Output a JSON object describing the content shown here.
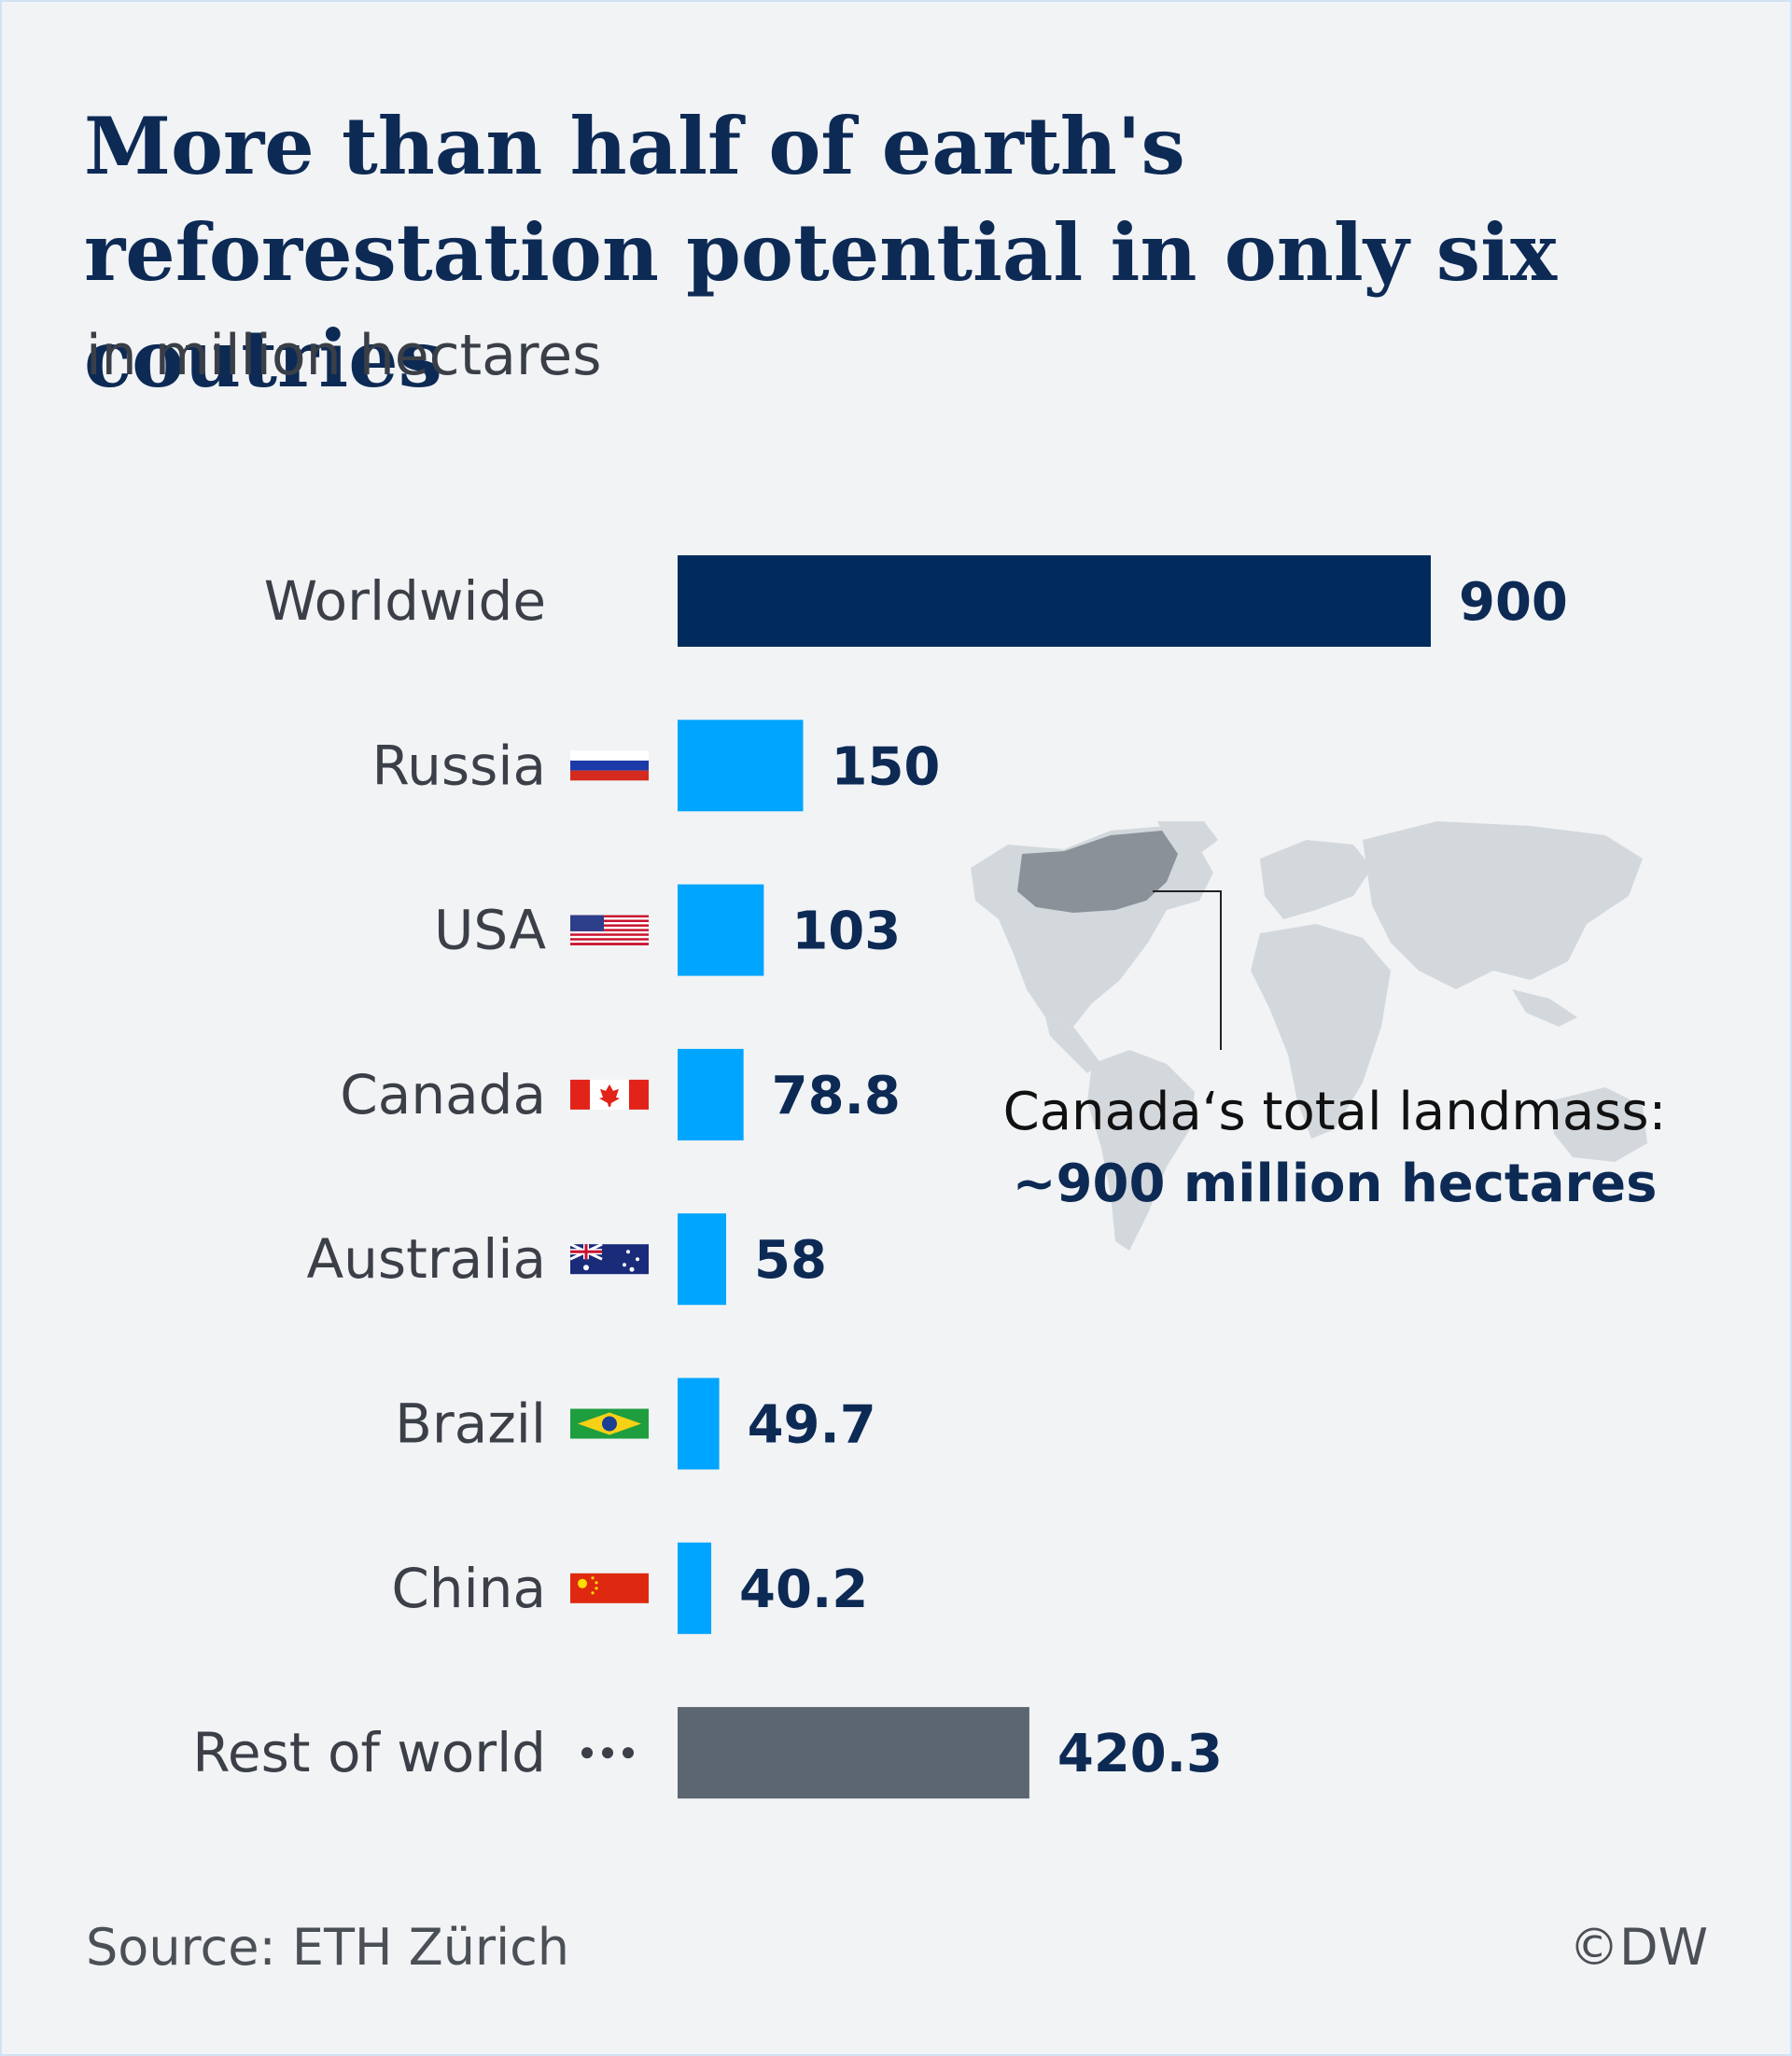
{
  "title": "More than half of earth's reforestation potential in only six coutries",
  "subtitle": "in million hectares",
  "chart_data": {
    "type": "bar",
    "orientation": "horizontal",
    "categories": [
      "Worldwide",
      "Russia",
      "USA",
      "Canada",
      "Australia",
      "Brazil",
      "China",
      "Rest of world"
    ],
    "values": [
      900,
      150,
      103,
      78.8,
      58,
      49.7,
      40.2,
      420.3
    ],
    "value_labels": [
      "900",
      "150",
      "103",
      "78.8",
      "58",
      "49.7",
      "40.2",
      "420.3"
    ],
    "bar_colors": [
      "#002b5c",
      "#00a5ff",
      "#00a5ff",
      "#00a5ff",
      "#00a5ff",
      "#00a5ff",
      "#00a5ff",
      "#5c6670"
    ],
    "flags": [
      "",
      "russia-flag",
      "usa-flag",
      "canada-flag",
      "australia-flag",
      "brazil-flag",
      "china-flag",
      "ellipsis-icon"
    ],
    "xlim": [
      0,
      900
    ],
    "grid": false,
    "annotation": {
      "line1": "Canada‘s total landmass:",
      "line2": "~900 million hectares",
      "graphic": "world-map-icon"
    }
  },
  "footer": {
    "source": "Source: ETH Zürich",
    "copyright": "©DW"
  }
}
